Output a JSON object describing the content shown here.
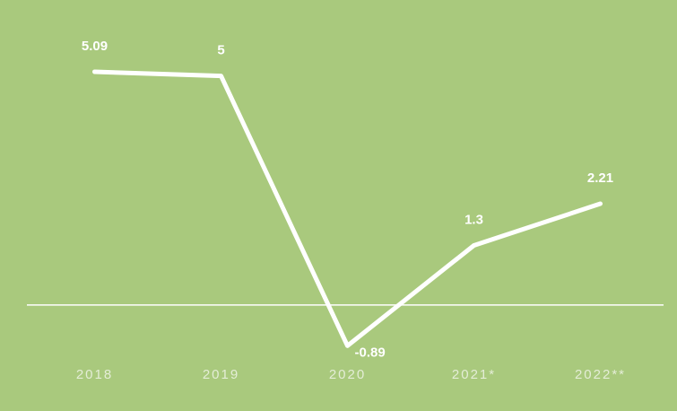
{
  "chart_data": {
    "type": "line",
    "categories": [
      "2018",
      "2019",
      "2020",
      "2021*",
      "2022**"
    ],
    "values": [
      5.09,
      5,
      -0.89,
      1.3,
      2.21
    ],
    "color": "#ffffff",
    "background": "#a9c97d",
    "ylim": [
      -2,
      6.5
    ]
  }
}
